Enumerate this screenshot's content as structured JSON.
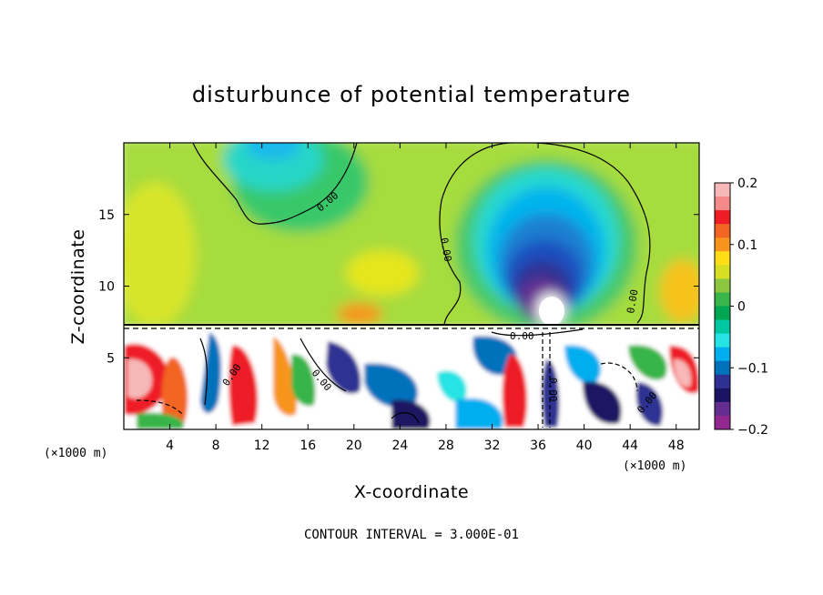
{
  "chart_data": {
    "type": "heatmap",
    "title": "disturbunce of potential temperature",
    "xlabel": "X-coordinate",
    "ylabel": "Z-coordinate",
    "x_unit": "(×1000 m)",
    "x_unit_right": "(×1000 m)",
    "x_ticks": [
      4,
      8,
      12,
      16,
      20,
      24,
      28,
      32,
      36,
      40,
      44,
      48
    ],
    "y_ticks": [
      5,
      10,
      15
    ],
    "xlim": [
      0,
      50
    ],
    "ylim": [
      0,
      20
    ],
    "colorbar": {
      "ticks": [
        0.2,
        0.1,
        0,
        -0.1,
        -0.2
      ],
      "range": [
        -0.2,
        0.2
      ],
      "colors": [
        "#f7b8b8",
        "#f48a8a",
        "#ee1c25",
        "#f26522",
        "#f7941d",
        "#ffde17",
        "#d7df23",
        "#8dc63f",
        "#39b54a",
        "#00a651",
        "#00c8a0",
        "#27e4e4",
        "#00aeef",
        "#0072bc",
        "#2e3192",
        "#1b1464",
        "#662d91",
        "#92278f"
      ]
    },
    "contour_labels": [
      "0.00",
      "0.00",
      "0.00",
      "0.00",
      "0.00",
      "0.00",
      "0.00",
      "0.00"
    ],
    "annotation": "CONTOUR INTERVAL = 3.000E-01"
  }
}
